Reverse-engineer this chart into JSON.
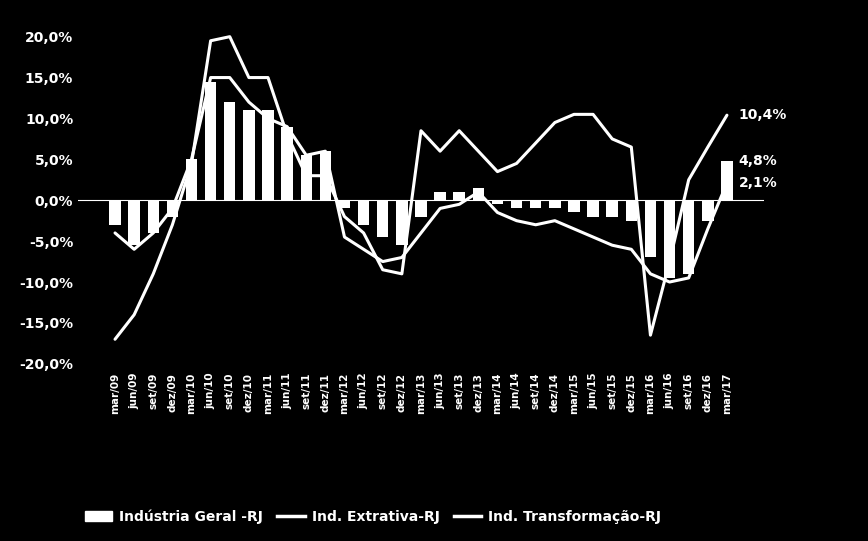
{
  "background_color": "#000000",
  "text_color": "#ffffff",
  "bar_color": "#ffffff",
  "line_color": "#ffffff",
  "ylim": [
    -0.205,
    0.225
  ],
  "yticks": [
    -0.2,
    -0.15,
    -0.1,
    -0.05,
    0.0,
    0.05,
    0.1,
    0.15,
    0.2
  ],
  "ytick_labels": [
    "-20,0%",
    "-15,0%",
    "-10,0%",
    "-5,0%",
    "0,0%",
    "5,0%",
    "10,0%",
    "15,0%",
    "20,0%"
  ],
  "labels": {
    "ind_geral": "Indústria Geral -RJ",
    "ind_ext": "Ind. Extrativa-RJ",
    "ind_trans": "Ind. Transformação-RJ"
  },
  "end_labels": {
    "ind_ext": "10,4%",
    "ind_geral": "4,8%",
    "ind_trans": "2,1%"
  },
  "xtick_labels": [
    "mar/09",
    "jun/09",
    "set/09",
    "dez/09",
    "mar/10",
    "jun/10",
    "set/10",
    "dez/10",
    "mar/11",
    "jun/11",
    "set/11",
    "dez/11",
    "mar/12",
    "jun/12",
    "set/12",
    "dez/12",
    "mar/13",
    "jun/13",
    "set/13",
    "dez/13",
    "mar/14",
    "jun/14",
    "set/14",
    "dez/14",
    "mar/15",
    "jun/15",
    "set/15",
    "dez/15",
    "mar/16",
    "jun/16",
    "set/16",
    "dez/16",
    "mar/17"
  ],
  "ind_geral": [
    -0.03,
    -0.055,
    -0.04,
    -0.02,
    0.05,
    0.145,
    0.12,
    0.11,
    0.11,
    0.09,
    0.055,
    0.06,
    -0.01,
    -0.03,
    -0.045,
    -0.055,
    -0.02,
    0.01,
    0.01,
    0.015,
    -0.005,
    -0.01,
    -0.01,
    -0.01,
    -0.015,
    -0.02,
    -0.02,
    -0.025,
    -0.07,
    -0.095,
    -0.09,
    -0.025,
    0.048
  ],
  "ind_ext": [
    -0.17,
    -0.14,
    -0.09,
    -0.03,
    0.045,
    0.195,
    0.2,
    0.15,
    0.15,
    0.08,
    0.03,
    0.03,
    -0.02,
    -0.04,
    -0.085,
    -0.09,
    0.085,
    0.06,
    0.085,
    0.06,
    0.035,
    0.045,
    0.07,
    0.095,
    0.105,
    0.105,
    0.075,
    0.065,
    -0.165,
    -0.075,
    0.025,
    0.065,
    0.104
  ],
  "ind_trans": [
    -0.04,
    -0.06,
    -0.04,
    -0.01,
    0.05,
    0.15,
    0.15,
    0.12,
    0.1,
    0.09,
    0.055,
    0.06,
    -0.045,
    -0.06,
    -0.075,
    -0.07,
    -0.04,
    -0.01,
    -0.005,
    0.01,
    -0.015,
    -0.025,
    -0.03,
    -0.025,
    -0.035,
    -0.045,
    -0.055,
    -0.06,
    -0.09,
    -0.1,
    -0.095,
    -0.035,
    0.021
  ]
}
